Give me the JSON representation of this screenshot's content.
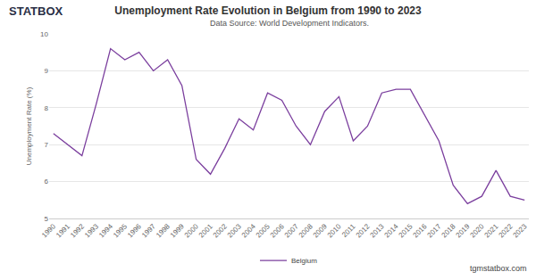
{
  "chart_data": {
    "type": "line",
    "title": "Unemployment Rate Evolution in Belgium from 1990 to 2023",
    "subtitle": "Data Source: World Development Indicators.",
    "y_label": "Unemployment Rate (%)",
    "categories": [
      "1990",
      "1991",
      "1992",
      "1993",
      "1994",
      "1995",
      "1996",
      "1997",
      "1998",
      "1999",
      "2000",
      "2001",
      "2002",
      "2003",
      "2004",
      "2005",
      "2006",
      "2007",
      "2008",
      "2009",
      "2010",
      "2011",
      "2012",
      "2013",
      "2014",
      "2015",
      "2016",
      "2017",
      "2018",
      "2019",
      "2020",
      "2021",
      "2022",
      "2023"
    ],
    "series": [
      {
        "name": "Belgium",
        "color": "#7b3f9e",
        "values": [
          7.3,
          7.0,
          6.7,
          8.1,
          9.6,
          9.3,
          9.5,
          9.0,
          9.3,
          8.6,
          6.6,
          6.2,
          6.9,
          7.7,
          7.4,
          8.4,
          8.2,
          7.5,
          7.0,
          7.9,
          8.3,
          7.1,
          7.5,
          8.4,
          8.5,
          8.5,
          7.8,
          7.1,
          5.9,
          5.4,
          5.6,
          6.3,
          5.6,
          5.5
        ]
      }
    ],
    "ylim": [
      5,
      10
    ],
    "yticks": [
      5,
      6,
      7,
      8,
      9,
      10
    ],
    "grid": true,
    "legend": "bottom",
    "annotations": [
      "STATBOX",
      "tgmstatbox.com"
    ]
  }
}
